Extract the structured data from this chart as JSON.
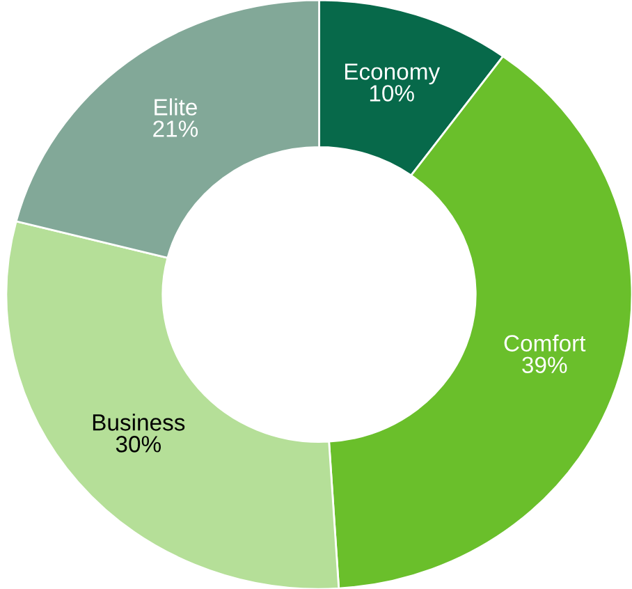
{
  "chart_data": {
    "type": "donut",
    "categories": [
      "Economy",
      "Comfort",
      "Business",
      "Elite"
    ],
    "values": [
      10,
      39,
      30,
      21
    ],
    "value_labels": [
      "10%",
      "39%",
      "30%",
      "21%"
    ],
    "colors": [
      "#07694a",
      "#6abf2b",
      "#b5df98",
      "#82a898"
    ],
    "legend": false
  }
}
